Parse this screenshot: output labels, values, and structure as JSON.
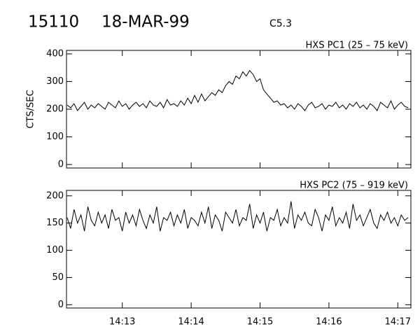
{
  "header": {
    "event": "15110",
    "date": "18-MAR-99",
    "class": "C5.3"
  },
  "chart_data": [
    {
      "type": "line",
      "title": "HXS PC1 (25 – 75 keV)",
      "y_label": "CTS/SEC",
      "color": "#000000",
      "x": [
        12.2,
        12.25,
        12.3,
        12.35,
        12.4,
        12.45,
        12.5,
        12.55,
        12.6,
        12.65,
        12.7,
        12.75,
        12.8,
        12.85,
        12.9,
        12.95,
        13.0,
        13.05,
        13.1,
        13.15,
        13.2,
        13.25,
        13.3,
        13.35,
        13.4,
        13.45,
        13.5,
        13.55,
        13.6,
        13.65,
        13.7,
        13.75,
        13.8,
        13.85,
        13.9,
        13.95,
        14.0,
        14.05,
        14.1,
        14.15,
        14.2,
        14.25,
        14.3,
        14.35,
        14.4,
        14.45,
        14.5,
        14.55,
        14.6,
        14.65,
        14.7,
        14.75,
        14.8,
        14.85,
        14.9,
        14.95,
        15.0,
        15.05,
        15.1,
        15.15,
        15.2,
        15.25,
        15.3,
        15.35,
        15.4,
        15.45,
        15.5,
        15.55,
        15.6,
        15.65,
        15.7,
        15.75,
        15.8,
        15.85,
        15.9,
        15.95,
        16.0,
        16.05,
        16.1,
        16.15,
        16.2,
        16.25,
        16.3,
        16.35,
        16.4,
        16.45,
        16.5,
        16.55,
        16.6,
        16.65,
        16.7,
        16.75,
        16.8,
        16.85,
        16.9,
        16.95,
        17.0,
        17.05,
        17.1,
        17.15
      ],
      "values": [
        215,
        205,
        220,
        195,
        210,
        225,
        200,
        215,
        205,
        220,
        210,
        200,
        225,
        215,
        205,
        230,
        210,
        220,
        200,
        215,
        225,
        210,
        220,
        205,
        230,
        215,
        210,
        225,
        205,
        235,
        215,
        220,
        210,
        230,
        215,
        240,
        220,
        250,
        225,
        255,
        230,
        245,
        260,
        250,
        270,
        260,
        285,
        300,
        290,
        320,
        310,
        335,
        320,
        340,
        325,
        300,
        310,
        270,
        255,
        240,
        225,
        230,
        215,
        220,
        205,
        215,
        200,
        220,
        210,
        195,
        215,
        225,
        205,
        210,
        220,
        200,
        215,
        210,
        225,
        205,
        215,
        200,
        220,
        210,
        225,
        205,
        215,
        200,
        220,
        210,
        195,
        225,
        215,
        205,
        230,
        200,
        215,
        225,
        210,
        205
      ],
      "xlim": [
        12.19,
        17.19
      ],
      "xticks": [
        13,
        14,
        15,
        16,
        17
      ],
      "ylim": [
        -12.5,
        412.5
      ],
      "yticks": [
        0,
        100,
        200,
        300,
        400
      ]
    },
    {
      "type": "line",
      "title": "HXS PC2 (75 – 919 keV)",
      "color": "#000000",
      "x": [
        12.2,
        12.25,
        12.3,
        12.35,
        12.4,
        12.45,
        12.5,
        12.55,
        12.6,
        12.65,
        12.7,
        12.75,
        12.8,
        12.85,
        12.9,
        12.95,
        13.0,
        13.05,
        13.1,
        13.15,
        13.2,
        13.25,
        13.3,
        13.35,
        13.4,
        13.45,
        13.5,
        13.55,
        13.6,
        13.65,
        13.7,
        13.75,
        13.8,
        13.85,
        13.9,
        13.95,
        14.0,
        14.05,
        14.1,
        14.15,
        14.2,
        14.25,
        14.3,
        14.35,
        14.4,
        14.45,
        14.5,
        14.55,
        14.6,
        14.65,
        14.7,
        14.75,
        14.8,
        14.85,
        14.9,
        14.95,
        15.0,
        15.05,
        15.1,
        15.15,
        15.2,
        15.25,
        15.3,
        15.35,
        15.4,
        15.45,
        15.5,
        15.55,
        15.6,
        15.65,
        15.7,
        15.75,
        15.8,
        15.85,
        15.9,
        15.95,
        16.0,
        16.05,
        16.1,
        16.15,
        16.2,
        16.25,
        16.3,
        16.35,
        16.4,
        16.45,
        16.5,
        16.55,
        16.6,
        16.65,
        16.7,
        16.75,
        16.8,
        16.85,
        16.9,
        16.95,
        17.0,
        17.05,
        17.1,
        17.15
      ],
      "values": [
        160,
        140,
        175,
        150,
        165,
        135,
        180,
        155,
        145,
        170,
        150,
        165,
        140,
        175,
        155,
        160,
        135,
        170,
        150,
        165,
        145,
        175,
        155,
        140,
        165,
        150,
        180,
        135,
        160,
        155,
        170,
        145,
        165,
        150,
        175,
        140,
        160,
        155,
        145,
        170,
        150,
        180,
        140,
        165,
        155,
        135,
        170,
        160,
        150,
        175,
        145,
        160,
        155,
        185,
        140,
        165,
        150,
        170,
        135,
        160,
        155,
        175,
        145,
        160,
        150,
        190,
        140,
        165,
        155,
        170,
        150,
        145,
        175,
        160,
        135,
        165,
        155,
        180,
        145,
        160,
        150,
        170,
        140,
        185,
        155,
        165,
        145,
        160,
        175,
        150,
        140,
        165,
        155,
        170,
        150,
        160,
        145,
        165,
        155,
        160
      ],
      "xlim": [
        12.19,
        17.19
      ],
      "xticks": [
        {
          "value": 13,
          "label": "14:13"
        },
        {
          "value": 14,
          "label": "14:14"
        },
        {
          "value": 15,
          "label": "14:15"
        },
        {
          "value": 16,
          "label": "14:16"
        },
        {
          "value": 17,
          "label": "14:17"
        }
      ],
      "ylim": [
        -6,
        210
      ],
      "yticks": [
        0,
        50,
        100,
        150,
        200
      ]
    }
  ]
}
